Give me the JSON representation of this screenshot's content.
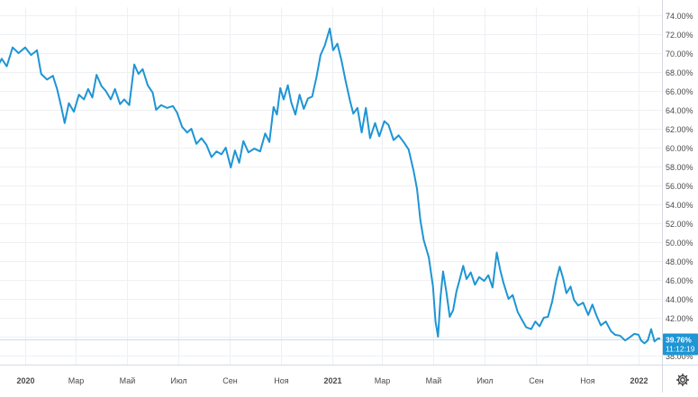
{
  "chart_data": {
    "type": "line",
    "title": "",
    "xlabel": "",
    "ylabel": "",
    "y_unit": "%",
    "ylim": [
      37.0,
      74.8
    ],
    "xlim": [
      "2020-01-01",
      "2022-02-10"
    ],
    "grid": true,
    "legend": "none",
    "y_ticks": [
      "38.00%",
      "40.00%",
      "42.00%",
      "44.00%",
      "46.00%",
      "48.00%",
      "50.00%",
      "52.00%",
      "54.00%",
      "56.00%",
      "58.00%",
      "60.00%",
      "62.00%",
      "64.00%",
      "66.00%",
      "68.00%",
      "70.00%",
      "72.00%",
      "74.00%"
    ],
    "y_tick_values": [
      38,
      40,
      42,
      44,
      46,
      48,
      50,
      52,
      54,
      56,
      58,
      60,
      62,
      64,
      66,
      68,
      70,
      72,
      74
    ],
    "x_ticks": [
      {
        "label": "2020",
        "date": "2020-01-01",
        "bold": true
      },
      {
        "label": "Мар",
        "date": "2020-03-01",
        "bold": false
      },
      {
        "label": "Май",
        "date": "2020-05-01",
        "bold": false
      },
      {
        "label": "Июл",
        "date": "2020-07-01",
        "bold": false
      },
      {
        "label": "Сен",
        "date": "2020-09-01",
        "bold": false
      },
      {
        "label": "Ноя",
        "date": "2020-11-01",
        "bold": false
      },
      {
        "label": "2021",
        "date": "2021-01-01",
        "bold": true
      },
      {
        "label": "Мар",
        "date": "2021-03-01",
        "bold": false
      },
      {
        "label": "Май",
        "date": "2021-05-01",
        "bold": false
      },
      {
        "label": "Июл",
        "date": "2021-07-01",
        "bold": false
      },
      {
        "label": "Сен",
        "date": "2021-09-01",
        "bold": false
      },
      {
        "label": "Ноя",
        "date": "2021-11-01",
        "bold": false
      },
      {
        "label": "2022",
        "date": "2022-01-01",
        "bold": true
      }
    ],
    "series": [
      {
        "color": "#1e95d4",
        "points": [
          [
            "2019-11-28",
            68.4
          ],
          [
            "2019-12-04",
            69.4
          ],
          [
            "2019-12-10",
            68.6
          ],
          [
            "2019-12-17",
            70.6
          ],
          [
            "2019-12-24",
            70.0
          ],
          [
            "2020-01-01",
            70.6
          ],
          [
            "2020-01-08",
            69.8
          ],
          [
            "2020-01-15",
            70.3
          ],
          [
            "2020-01-20",
            67.8
          ],
          [
            "2020-01-27",
            67.2
          ],
          [
            "2020-02-03",
            67.6
          ],
          [
            "2020-02-08",
            66.2
          ],
          [
            "2020-02-13",
            64.3
          ],
          [
            "2020-02-17",
            62.6
          ],
          [
            "2020-02-22",
            64.7
          ],
          [
            "2020-02-28",
            63.8
          ],
          [
            "2020-03-05",
            65.6
          ],
          [
            "2020-03-11",
            65.1
          ],
          [
            "2020-03-16",
            66.2
          ],
          [
            "2020-03-21",
            65.3
          ],
          [
            "2020-03-26",
            67.7
          ],
          [
            "2020-04-01",
            66.5
          ],
          [
            "2020-04-06",
            66.0
          ],
          [
            "2020-04-12",
            65.1
          ],
          [
            "2020-04-17",
            66.2
          ],
          [
            "2020-04-23",
            64.6
          ],
          [
            "2020-04-28",
            65.1
          ],
          [
            "2020-05-04",
            64.5
          ],
          [
            "2020-05-10",
            68.8
          ],
          [
            "2020-05-15",
            67.8
          ],
          [
            "2020-05-20",
            68.3
          ],
          [
            "2020-05-26",
            66.6
          ],
          [
            "2020-06-01",
            65.8
          ],
          [
            "2020-06-05",
            64.0
          ],
          [
            "2020-06-11",
            64.5
          ],
          [
            "2020-06-18",
            64.2
          ],
          [
            "2020-06-25",
            64.4
          ],
          [
            "2020-06-30",
            63.7
          ],
          [
            "2020-07-06",
            62.2
          ],
          [
            "2020-07-12",
            61.6
          ],
          [
            "2020-07-17",
            62.0
          ],
          [
            "2020-07-23",
            60.4
          ],
          [
            "2020-07-29",
            61.0
          ],
          [
            "2020-08-04",
            60.3
          ],
          [
            "2020-08-10",
            59.0
          ],
          [
            "2020-08-16",
            59.6
          ],
          [
            "2020-08-22",
            59.3
          ],
          [
            "2020-08-27",
            60.0
          ],
          [
            "2020-09-02",
            57.9
          ],
          [
            "2020-09-07",
            59.7
          ],
          [
            "2020-09-12",
            58.4
          ],
          [
            "2020-09-17",
            60.7
          ],
          [
            "2020-09-23",
            59.5
          ],
          [
            "2020-09-30",
            59.9
          ],
          [
            "2020-10-07",
            59.6
          ],
          [
            "2020-10-13",
            61.5
          ],
          [
            "2020-10-18",
            60.6
          ],
          [
            "2020-10-23",
            64.3
          ],
          [
            "2020-10-27",
            63.5
          ],
          [
            "2020-10-31",
            66.3
          ],
          [
            "2020-11-04",
            65.1
          ],
          [
            "2020-11-09",
            66.6
          ],
          [
            "2020-11-13",
            64.8
          ],
          [
            "2020-11-18",
            63.5
          ],
          [
            "2020-11-23",
            65.6
          ],
          [
            "2020-11-28",
            64.1
          ],
          [
            "2020-12-03",
            65.2
          ],
          [
            "2020-12-08",
            65.4
          ],
          [
            "2020-12-13",
            67.4
          ],
          [
            "2020-12-18",
            69.8
          ],
          [
            "2020-12-23",
            70.8
          ],
          [
            "2020-12-29",
            72.6
          ],
          [
            "2021-01-02",
            70.3
          ],
          [
            "2021-01-07",
            71.0
          ],
          [
            "2021-01-12",
            69.2
          ],
          [
            "2021-01-17",
            67.0
          ],
          [
            "2021-01-22",
            65.0
          ],
          [
            "2021-01-26",
            63.6
          ],
          [
            "2021-01-31",
            64.2
          ],
          [
            "2021-02-05",
            61.6
          ],
          [
            "2021-02-10",
            64.2
          ],
          [
            "2021-02-15",
            61.0
          ],
          [
            "2021-02-21",
            62.6
          ],
          [
            "2021-02-26",
            61.2
          ],
          [
            "2021-03-04",
            62.8
          ],
          [
            "2021-03-09",
            62.4
          ],
          [
            "2021-03-15",
            60.8
          ],
          [
            "2021-03-21",
            61.3
          ],
          [
            "2021-03-27",
            60.6
          ],
          [
            "2021-04-02",
            59.8
          ],
          [
            "2021-04-08",
            57.5
          ],
          [
            "2021-04-12",
            55.6
          ],
          [
            "2021-04-16",
            52.3
          ],
          [
            "2021-04-20",
            50.2
          ],
          [
            "2021-04-26",
            48.4
          ],
          [
            "2021-05-01",
            45.3
          ],
          [
            "2021-05-04",
            41.6
          ],
          [
            "2021-05-07",
            40.0
          ],
          [
            "2021-05-10",
            44.2
          ],
          [
            "2021-05-13",
            46.9
          ],
          [
            "2021-05-17",
            44.7
          ],
          [
            "2021-05-21",
            42.1
          ],
          [
            "2021-05-25",
            42.8
          ],
          [
            "2021-05-29",
            44.8
          ],
          [
            "2021-06-02",
            46.1
          ],
          [
            "2021-06-06",
            47.5
          ],
          [
            "2021-06-10",
            46.1
          ],
          [
            "2021-06-15",
            46.8
          ],
          [
            "2021-06-20",
            45.5
          ],
          [
            "2021-06-25",
            46.3
          ],
          [
            "2021-07-01",
            45.9
          ],
          [
            "2021-07-06",
            46.5
          ],
          [
            "2021-07-11",
            45.2
          ],
          [
            "2021-07-16",
            48.9
          ],
          [
            "2021-07-20",
            47.1
          ],
          [
            "2021-07-24",
            45.7
          ],
          [
            "2021-07-30",
            44.0
          ],
          [
            "2021-08-04",
            44.4
          ],
          [
            "2021-08-10",
            42.6
          ],
          [
            "2021-08-15",
            41.8
          ],
          [
            "2021-08-20",
            41.0
          ],
          [
            "2021-08-26",
            40.8
          ],
          [
            "2021-08-31",
            41.6
          ],
          [
            "2021-09-05",
            41.1
          ],
          [
            "2021-09-10",
            42.0
          ],
          [
            "2021-09-15",
            42.1
          ],
          [
            "2021-09-20",
            43.7
          ],
          [
            "2021-09-25",
            46.0
          ],
          [
            "2021-09-29",
            47.4
          ],
          [
            "2021-10-03",
            46.2
          ],
          [
            "2021-10-07",
            44.6
          ],
          [
            "2021-10-12",
            45.3
          ],
          [
            "2021-10-16",
            43.9
          ],
          [
            "2021-10-21",
            43.3
          ],
          [
            "2021-10-27",
            43.6
          ],
          [
            "2021-11-02",
            42.3
          ],
          [
            "2021-11-07",
            43.4
          ],
          [
            "2021-11-12",
            42.2
          ],
          [
            "2021-11-17",
            41.2
          ],
          [
            "2021-11-23",
            41.6
          ],
          [
            "2021-11-29",
            40.6
          ],
          [
            "2021-12-04",
            40.2
          ],
          [
            "2021-12-10",
            40.1
          ],
          [
            "2021-12-16",
            39.6
          ],
          [
            "2021-12-21",
            39.9
          ],
          [
            "2021-12-27",
            40.3
          ],
          [
            "2022-01-01",
            40.2
          ],
          [
            "2022-01-04",
            39.6
          ],
          [
            "2022-01-08",
            39.3
          ],
          [
            "2022-01-12",
            39.6
          ],
          [
            "2022-01-16",
            40.8
          ],
          [
            "2022-01-20",
            39.5
          ],
          [
            "2022-01-24",
            39.8
          ],
          [
            "2022-01-26",
            39.8
          ]
        ]
      }
    ],
    "current_value": {
      "value": 39.76,
      "label": "39.76%",
      "time": "11:12:19",
      "color": "#1e95d4"
    }
  },
  "toolbar": {
    "settings_icon": "gear-icon"
  }
}
